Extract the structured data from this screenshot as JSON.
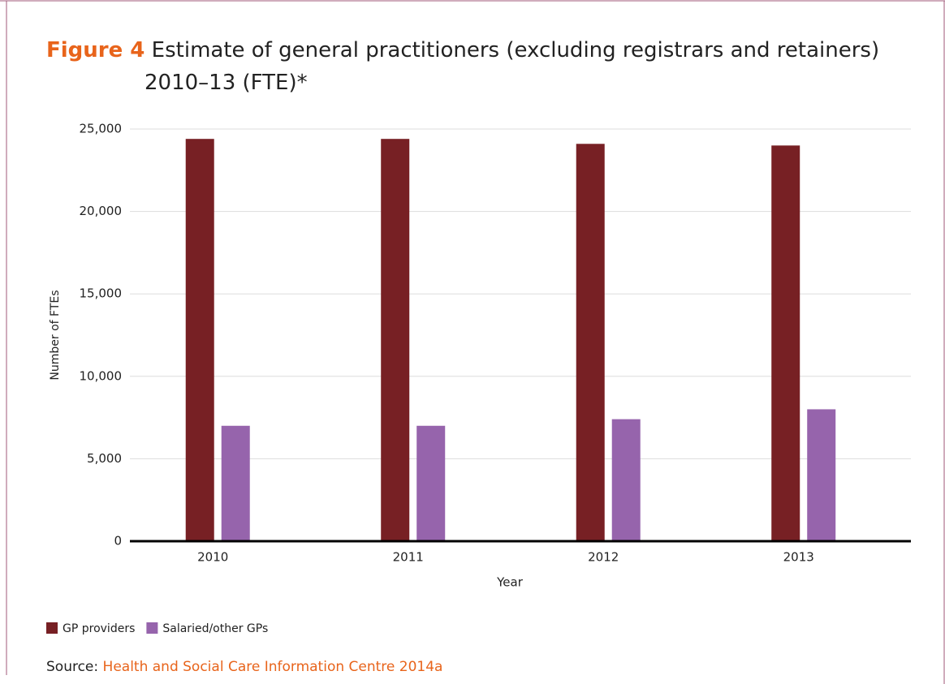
{
  "chart_data": {
    "type": "bar",
    "figure_label": "Figure 4",
    "title": "Estimate of general practitioners (excluding registrars and retainers) 2010–13 (FTE)*",
    "x_label": "Year",
    "y_label": "Number of FTEs",
    "categories": [
      "2010",
      "2011",
      "2012",
      "2013"
    ],
    "series": [
      {
        "name": "GP providers",
        "color": "#772024",
        "values": [
          24400,
          24400,
          24100,
          24000
        ]
      },
      {
        "name": "Salaried/other GPs",
        "color": "#9664ac",
        "values": [
          7000,
          7000,
          7400,
          8000
        ]
      }
    ],
    "ylim": [
      0,
      25000
    ],
    "yticks": [
      0,
      {
        "value": 5000,
        "label": "5,000"
      },
      {
        "value": 10000,
        "label": "10,000"
      },
      {
        "value": 15000,
        "label": "15,000"
      },
      {
        "value": 20000,
        "label": "20,000"
      },
      {
        "value": 25000,
        "label": "25,000"
      }
    ],
    "grid": true,
    "source_label": "Source:",
    "source": "Health and Social Care Information Centre 2014a"
  }
}
